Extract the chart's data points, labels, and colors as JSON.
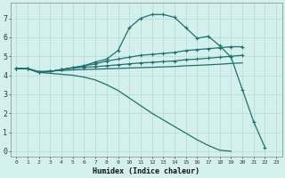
{
  "background_color": "#d4f0ec",
  "grid_color": "#b8ddd8",
  "line_color": "#1e7070",
  "xlabel": "Humidex (Indice chaleur)",
  "xlim": [
    -0.5,
    23.5
  ],
  "ylim": [
    -0.3,
    7.8
  ],
  "xtick_labels": [
    "0",
    "1",
    "2",
    "3",
    "4",
    "5",
    "6",
    "7",
    "8",
    "9",
    "10",
    "11",
    "12",
    "13",
    "14",
    "15",
    "16",
    "17",
    "18",
    "19",
    "20",
    "21",
    "22",
    "23"
  ],
  "xticks": [
    0,
    1,
    2,
    3,
    4,
    5,
    6,
    7,
    8,
    9,
    10,
    11,
    12,
    13,
    14,
    15,
    16,
    17,
    18,
    19,
    20,
    21,
    22,
    23
  ],
  "yticks": [
    0,
    1,
    2,
    3,
    4,
    5,
    6,
    7
  ],
  "series": [
    {
      "x": [
        0,
        1,
        2,
        3,
        4,
        5,
        6,
        7,
        8,
        9,
        10,
        11,
        12,
        13,
        14,
        15,
        16,
        17,
        18,
        19,
        20,
        21,
        22
      ],
      "y": [
        4.35,
        4.35,
        4.15,
        4.2,
        4.3,
        4.4,
        4.5,
        4.7,
        4.85,
        5.3,
        6.5,
        7.0,
        7.2,
        7.2,
        7.05,
        6.5,
        5.95,
        6.05,
        5.55,
        4.95,
        3.25,
        1.55,
        0.2
      ],
      "marker": true,
      "lw": 0.9
    },
    {
      "x": [
        0,
        1,
        2,
        3,
        4,
        5,
        6,
        7,
        8,
        9,
        10,
        11,
        12,
        13,
        14,
        15,
        16,
        17,
        18,
        19,
        20
      ],
      "y": [
        4.35,
        4.35,
        4.15,
        4.2,
        4.3,
        4.4,
        4.5,
        4.6,
        4.75,
        4.85,
        4.95,
        5.05,
        5.1,
        5.15,
        5.2,
        5.3,
        5.35,
        5.4,
        5.45,
        5.5,
        5.5
      ],
      "marker": true,
      "lw": 0.9
    },
    {
      "x": [
        0,
        1,
        2,
        3,
        4,
        5,
        6,
        7,
        8,
        9,
        10,
        11,
        12,
        13,
        14,
        15,
        16,
        17,
        18,
        19,
        20
      ],
      "y": [
        4.35,
        4.35,
        4.15,
        4.2,
        4.3,
        4.38,
        4.42,
        4.45,
        4.5,
        4.55,
        4.6,
        4.65,
        4.68,
        4.72,
        4.75,
        4.82,
        4.85,
        4.9,
        4.95,
        5.0,
        5.05
      ],
      "marker": true,
      "lw": 0.9
    },
    {
      "x": [
        0,
        1,
        2,
        3,
        4,
        5,
        6,
        7,
        8,
        9,
        10,
        11,
        12,
        13,
        14,
        15,
        16,
        17,
        18,
        19,
        20
      ],
      "y": [
        4.35,
        4.35,
        4.2,
        4.22,
        4.25,
        4.28,
        4.3,
        4.32,
        4.34,
        4.36,
        4.38,
        4.4,
        4.42,
        4.44,
        4.46,
        4.5,
        4.52,
        4.55,
        4.58,
        4.62,
        4.65
      ],
      "marker": false,
      "lw": 0.9
    },
    {
      "x": [
        0,
        1,
        2,
        3,
        4,
        5,
        6,
        7,
        8,
        9,
        10,
        11,
        12,
        13,
        14,
        15,
        16,
        17,
        18,
        19
      ],
      "y": [
        4.35,
        4.35,
        4.15,
        4.1,
        4.05,
        4.0,
        3.9,
        3.75,
        3.5,
        3.2,
        2.8,
        2.4,
        2.0,
        1.65,
        1.3,
        0.95,
        0.6,
        0.3,
        0.05,
        0.0
      ],
      "marker": false,
      "lw": 0.9
    }
  ]
}
